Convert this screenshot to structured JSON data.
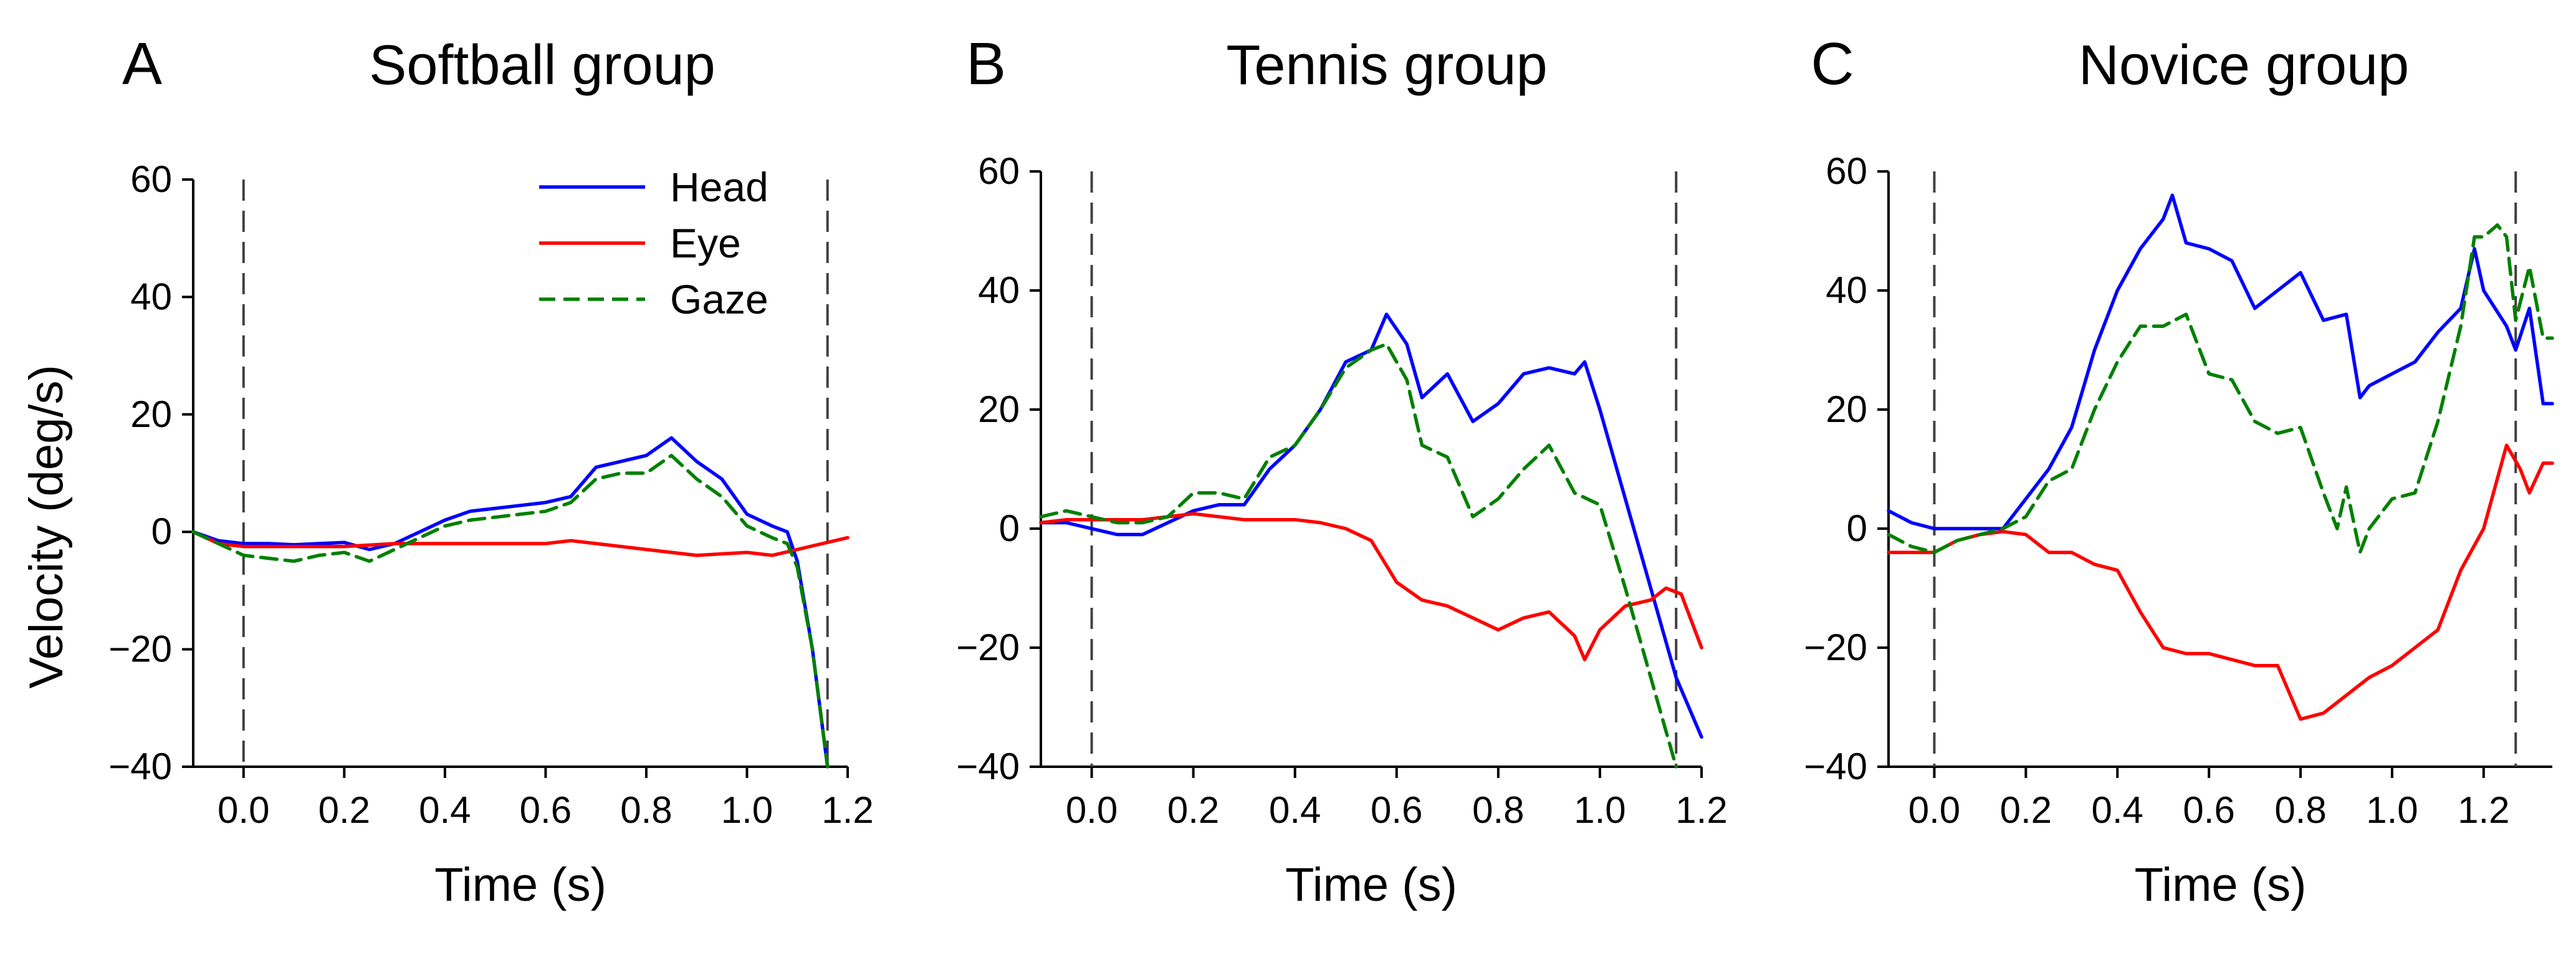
{
  "figure": {
    "y_axis_label": "Velocity (deg/s)"
  },
  "legend": {
    "placement": "top-right of panel A",
    "entries": [
      {
        "name": "Head",
        "color": "#0000ff",
        "dash": "solid"
      },
      {
        "name": "Eye",
        "color": "#ff0000",
        "dash": "solid"
      },
      {
        "name": "Gaze",
        "color": "#008000",
        "dash": "dashed"
      }
    ]
  },
  "chart_data": [
    {
      "type": "line",
      "panel_letter": "A",
      "title": "Softball group",
      "xlabel": "Time (s)",
      "ylabel": "Velocity (deg/s)",
      "xlim": [
        -0.1,
        1.2
      ],
      "ylim": [
        -40,
        60
      ],
      "xticks": [
        "0.0",
        "0.2",
        "0.4",
        "0.6",
        "0.8",
        "1.0",
        "1.2"
      ],
      "yticks": [
        "60",
        "40",
        "20",
        "0",
        "−20",
        "−40"
      ],
      "xtick_values": [
        0,
        0.2,
        0.4,
        0.6,
        0.8,
        1.0,
        1.2
      ],
      "ytick_values": [
        60,
        40,
        20,
        0,
        -20,
        -40
      ],
      "event_lines_x": [
        0.0,
        1.16
      ],
      "grid": false,
      "series": [
        {
          "name": "Head",
          "color": "#0000ff",
          "dash": "solid",
          "x": [
            -0.1,
            -0.05,
            0,
            0.05,
            0.1,
            0.15,
            0.2,
            0.25,
            0.3,
            0.35,
            0.4,
            0.45,
            0.5,
            0.55,
            0.6,
            0.65,
            0.7,
            0.75,
            0.8,
            0.85,
            0.9,
            0.95,
            1.0,
            1.05,
            1.08,
            1.1,
            1.13,
            1.16
          ],
          "y": [
            0,
            -1.5,
            -2,
            -2,
            -2.2,
            -2,
            -1.8,
            -3,
            -2,
            0,
            2,
            3.5,
            4,
            4.5,
            5,
            6,
            11,
            12,
            13,
            16,
            12,
            9,
            3,
            1,
            0,
            -5,
            -20,
            -40
          ]
        },
        {
          "name": "Eye",
          "color": "#ff0000",
          "dash": "solid",
          "x": [
            -0.1,
            -0.05,
            0,
            0.1,
            0.2,
            0.3,
            0.4,
            0.5,
            0.6,
            0.65,
            0.7,
            0.8,
            0.9,
            1.0,
            1.05,
            1.1,
            1.15,
            1.2
          ],
          "y": [
            0,
            -2,
            -2.5,
            -2.5,
            -2.5,
            -2,
            -2,
            -2,
            -2,
            -1.5,
            -2,
            -3,
            -4,
            -3.5,
            -4,
            -3,
            -2,
            -1
          ]
        },
        {
          "name": "Gaze",
          "color": "#008000",
          "dash": "dashed",
          "x": [
            -0.1,
            -0.05,
            0,
            0.05,
            0.1,
            0.15,
            0.2,
            0.25,
            0.3,
            0.35,
            0.4,
            0.45,
            0.5,
            0.55,
            0.6,
            0.65,
            0.7,
            0.75,
            0.8,
            0.85,
            0.9,
            0.95,
            1.0,
            1.05,
            1.08,
            1.1,
            1.13,
            1.16
          ],
          "y": [
            0,
            -2,
            -4,
            -4.5,
            -5,
            -4,
            -3.5,
            -5,
            -3,
            -1,
            1,
            2,
            2.5,
            3,
            3.5,
            5,
            9,
            10,
            10,
            13,
            9,
            6,
            1,
            -1,
            -2,
            -6,
            -20,
            -40
          ]
        }
      ]
    },
    {
      "type": "line",
      "panel_letter": "B",
      "title": "Tennis group",
      "xlabel": "Time (s)",
      "xlim": [
        -0.1,
        1.2
      ],
      "ylim": [
        -40,
        60
      ],
      "xticks": [
        "0.0",
        "0.2",
        "0.4",
        "0.6",
        "0.8",
        "1.0",
        "1.2"
      ],
      "yticks": [
        "60",
        "40",
        "20",
        "0",
        "−20",
        "−40"
      ],
      "xtick_values": [
        0,
        0.2,
        0.4,
        0.6,
        0.8,
        1.0,
        1.2
      ],
      "ytick_values": [
        60,
        40,
        20,
        0,
        -20,
        -40
      ],
      "event_lines_x": [
        0.0,
        1.15
      ],
      "grid": false,
      "series": [
        {
          "name": "Head",
          "color": "#0000ff",
          "dash": "solid",
          "x": [
            -0.1,
            -0.05,
            0,
            0.05,
            0.1,
            0.15,
            0.2,
            0.25,
            0.3,
            0.35,
            0.4,
            0.45,
            0.5,
            0.55,
            0.58,
            0.62,
            0.65,
            0.7,
            0.75,
            0.8,
            0.85,
            0.9,
            0.95,
            0.97,
            1.0,
            1.05,
            1.1,
            1.15,
            1.2
          ],
          "y": [
            1,
            1,
            0,
            -1,
            -1,
            1,
            3,
            4,
            4,
            10,
            14,
            20,
            28,
            30,
            36,
            31,
            22,
            26,
            18,
            21,
            26,
            27,
            26,
            28,
            20,
            5,
            -10,
            -25,
            -35
          ]
        },
        {
          "name": "Eye",
          "color": "#ff0000",
          "dash": "solid",
          "x": [
            -0.1,
            -0.05,
            0,
            0.1,
            0.2,
            0.3,
            0.4,
            0.45,
            0.5,
            0.55,
            0.6,
            0.65,
            0.7,
            0.75,
            0.8,
            0.85,
            0.9,
            0.95,
            0.97,
            1.0,
            1.05,
            1.1,
            1.13,
            1.16,
            1.2
          ],
          "y": [
            1,
            1.5,
            1.5,
            1.5,
            2.5,
            1.5,
            1.5,
            1,
            0,
            -2,
            -9,
            -12,
            -13,
            -15,
            -17,
            -15,
            -14,
            -18,
            -22,
            -17,
            -13,
            -12,
            -10,
            -11,
            -20
          ]
        },
        {
          "name": "Gaze",
          "color": "#008000",
          "dash": "dashed",
          "x": [
            -0.1,
            -0.05,
            0,
            0.05,
            0.1,
            0.15,
            0.2,
            0.25,
            0.3,
            0.35,
            0.4,
            0.45,
            0.5,
            0.55,
            0.58,
            0.62,
            0.65,
            0.7,
            0.75,
            0.8,
            0.85,
            0.9,
            0.95,
            1.0,
            1.05,
            1.1,
            1.15
          ],
          "y": [
            2,
            3,
            2,
            1,
            1,
            2,
            6,
            6,
            5,
            12,
            14,
            20,
            27,
            30,
            31,
            25,
            14,
            12,
            2,
            5,
            10,
            14,
            6,
            4,
            -10,
            -25,
            -40
          ]
        }
      ]
    },
    {
      "type": "line",
      "panel_letter": "C",
      "title": "Novice group",
      "xlabel": "Time (s)",
      "xlim": [
        -0.1,
        1.35
      ],
      "ylim": [
        -40,
        60
      ],
      "xticks": [
        "0.0",
        "0.2",
        "0.4",
        "0.6",
        "0.8",
        "1.0",
        "1.2"
      ],
      "yticks": [
        "60",
        "40",
        "20",
        "0",
        "−20",
        "−40"
      ],
      "xtick_values": [
        0,
        0.2,
        0.4,
        0.6,
        0.8,
        1.0,
        1.2
      ],
      "ytick_values": [
        60,
        40,
        20,
        0,
        -20,
        -40
      ],
      "event_lines_x": [
        0.0,
        1.27
      ],
      "grid": false,
      "series": [
        {
          "name": "Head",
          "color": "#0000ff",
          "dash": "solid",
          "x": [
            -0.1,
            -0.05,
            0,
            0.05,
            0.1,
            0.15,
            0.2,
            0.25,
            0.3,
            0.35,
            0.4,
            0.45,
            0.5,
            0.52,
            0.55,
            0.6,
            0.65,
            0.7,
            0.75,
            0.8,
            0.85,
            0.9,
            0.93,
            0.95,
            1.0,
            1.05,
            1.1,
            1.15,
            1.18,
            1.2,
            1.25,
            1.27,
            1.3,
            1.33,
            1.35
          ],
          "y": [
            3,
            1,
            0,
            0,
            0,
            0,
            5,
            10,
            17,
            30,
            40,
            47,
            52,
            56,
            48,
            47,
            45,
            37,
            40,
            43,
            35,
            36,
            22,
            24,
            26,
            28,
            33,
            37,
            47,
            40,
            34,
            30,
            37,
            21,
            21
          ]
        },
        {
          "name": "Eye",
          "color": "#ff0000",
          "dash": "solid",
          "x": [
            -0.1,
            -0.05,
            0,
            0.05,
            0.1,
            0.15,
            0.2,
            0.25,
            0.3,
            0.35,
            0.4,
            0.45,
            0.5,
            0.55,
            0.6,
            0.65,
            0.7,
            0.75,
            0.8,
            0.85,
            0.9,
            0.95,
            1.0,
            1.05,
            1.1,
            1.15,
            1.2,
            1.25,
            1.28,
            1.3,
            1.33,
            1.35
          ],
          "y": [
            -4,
            -4,
            -4,
            -2,
            -1,
            -0.5,
            -1,
            -4,
            -4,
            -6,
            -7,
            -14,
            -20,
            -21,
            -21,
            -22,
            -23,
            -23,
            -32,
            -31,
            -28,
            -25,
            -23,
            -20,
            -17,
            -7,
            0,
            14,
            10,
            6,
            11,
            11
          ]
        },
        {
          "name": "Gaze",
          "color": "#008000",
          "dash": "dashed",
          "x": [
            -0.1,
            -0.05,
            0,
            0.05,
            0.1,
            0.15,
            0.2,
            0.25,
            0.3,
            0.35,
            0.4,
            0.45,
            0.5,
            0.55,
            0.6,
            0.65,
            0.7,
            0.75,
            0.8,
            0.85,
            0.88,
            0.9,
            0.93,
            0.95,
            1.0,
            1.05,
            1.1,
            1.15,
            1.18,
            1.2,
            1.23,
            1.25,
            1.27,
            1.3,
            1.33,
            1.35
          ],
          "y": [
            -1,
            -3,
            -4,
            -2,
            -1,
            0,
            2,
            8,
            10,
            20,
            28,
            34,
            34,
            36,
            26,
            25,
            18,
            16,
            17,
            6,
            0,
            7,
            -4,
            0,
            5,
            6,
            18,
            34,
            49,
            49,
            51,
            49,
            35,
            44,
            32,
            32
          ]
        }
      ]
    }
  ]
}
